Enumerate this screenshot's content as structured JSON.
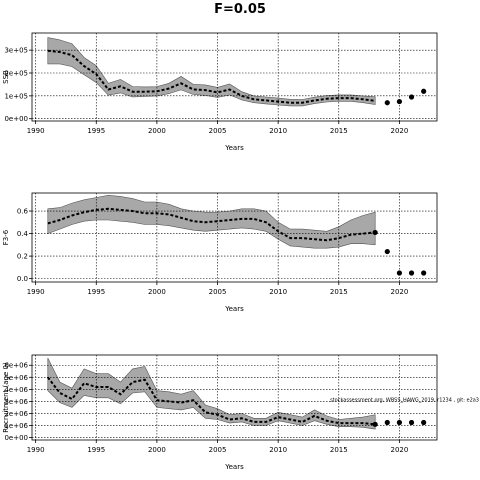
{
  "title": "F=0.05",
  "chart_data": [
    {
      "type": "line",
      "ylabel": "SSB",
      "xlabel": "Years",
      "xlim": [
        1989.7,
        2023.1
      ],
      "ylim": [
        -10000,
        375000
      ],
      "xticks": [
        1990,
        1995,
        2000,
        2005,
        2010,
        2015,
        2020
      ],
      "yticks": [
        0,
        100000,
        200000,
        300000
      ],
      "ytick_labels": [
        "0e+00",
        "1e+05",
        "2e+05",
        "3e+05"
      ],
      "grid": true,
      "x": [
        1991,
        1992,
        1993,
        1994,
        1995,
        1996,
        1997,
        1998,
        1999,
        2000,
        2001,
        2002,
        2003,
        2004,
        2005,
        2006,
        2007,
        2008,
        2009,
        2010,
        2011,
        2012,
        2013,
        2014,
        2015,
        2016,
        2017,
        2018
      ],
      "median": [
        297000,
        292000,
        278000,
        230000,
        195000,
        128000,
        142000,
        118000,
        118000,
        120000,
        132000,
        155000,
        128000,
        125000,
        115000,
        128000,
        100000,
        85000,
        80000,
        75000,
        70000,
        70000,
        80000,
        87000,
        90000,
        90000,
        85000,
        78000
      ],
      "upper": [
        355000,
        345000,
        328000,
        268000,
        232000,
        155000,
        172000,
        141000,
        139000,
        140000,
        155000,
        185000,
        150000,
        148000,
        137000,
        152000,
        118000,
        100000,
        95000,
        90000,
        85000,
        84000,
        94000,
        101000,
        104000,
        104000,
        100000,
        96000
      ],
      "lower": [
        240000,
        240000,
        228000,
        192000,
        158000,
        103000,
        113000,
        95000,
        97000,
        100000,
        110000,
        126000,
        106000,
        102000,
        93000,
        104000,
        82000,
        70000,
        65000,
        60000,
        56000,
        56000,
        66000,
        73000,
        76000,
        76000,
        70000,
        62000
      ],
      "projection": {
        "x": [
          2019,
          2020,
          2021,
          2022
        ],
        "y": [
          70000,
          75000,
          95000,
          120000
        ]
      }
    },
    {
      "type": "line",
      "ylabel": "F3-6",
      "xlabel": "Years",
      "xlim": [
        1989.7,
        2023.1
      ],
      "ylim": [
        -0.03,
        0.76
      ],
      "xticks": [
        1990,
        1995,
        2000,
        2005,
        2010,
        2015,
        2020
      ],
      "yticks": [
        0.0,
        0.2,
        0.4,
        0.6
      ],
      "ytick_labels": [
        "0.0",
        "0.2",
        "0.4",
        "0.6"
      ],
      "grid": true,
      "x": [
        1991,
        1992,
        1993,
        1994,
        1995,
        1996,
        1997,
        1998,
        1999,
        2000,
        2001,
        2002,
        2003,
        2004,
        2005,
        2006,
        2007,
        2008,
        2009,
        2010,
        2011,
        2012,
        2013,
        2014,
        2015,
        2016,
        2017,
        2018
      ],
      "median": [
        0.49,
        0.52,
        0.56,
        0.59,
        0.61,
        0.62,
        0.61,
        0.6,
        0.58,
        0.58,
        0.57,
        0.54,
        0.51,
        0.5,
        0.51,
        0.52,
        0.53,
        0.53,
        0.5,
        0.42,
        0.36,
        0.36,
        0.35,
        0.34,
        0.36,
        0.39,
        0.4,
        0.41
      ],
      "upper": [
        0.62,
        0.63,
        0.67,
        0.7,
        0.72,
        0.74,
        0.73,
        0.71,
        0.68,
        0.68,
        0.66,
        0.62,
        0.6,
        0.59,
        0.59,
        0.6,
        0.62,
        0.62,
        0.6,
        0.5,
        0.44,
        0.44,
        0.43,
        0.42,
        0.46,
        0.52,
        0.56,
        0.59
      ],
      "lower": [
        0.4,
        0.44,
        0.48,
        0.51,
        0.52,
        0.52,
        0.51,
        0.5,
        0.48,
        0.48,
        0.47,
        0.45,
        0.43,
        0.42,
        0.43,
        0.44,
        0.45,
        0.44,
        0.42,
        0.35,
        0.29,
        0.28,
        0.27,
        0.27,
        0.28,
        0.31,
        0.31,
        0.3
      ],
      "projection": {
        "x": [
          2018,
          2019,
          2020,
          2021,
          2022
        ],
        "y": [
          0.41,
          0.24,
          0.05,
          0.05,
          0.05
        ]
      }
    },
    {
      "type": "line",
      "ylabel": "Recruitment (age 0)",
      "xlabel": "Years",
      "xlim": [
        1989.7,
        2023.1
      ],
      "ylim": [
        -200000,
        6850000
      ],
      "xticks": [
        1990,
        1995,
        2000,
        2005,
        2010,
        2015,
        2020
      ],
      "yticks": [
        0,
        1000000,
        2000000,
        3000000,
        4000000,
        5000000,
        6000000
      ],
      "ytick_labels": [
        "0e+00",
        "1e+06",
        "2e+06",
        "3e+06",
        "4e+06",
        "5e+06",
        "6e+06"
      ],
      "grid": true,
      "x": [
        1991,
        1992,
        1993,
        1994,
        1995,
        1996,
        1997,
        1998,
        1999,
        2000,
        2001,
        2002,
        2003,
        2004,
        2005,
        2006,
        2007,
        2008,
        2009,
        2010,
        2011,
        2012,
        2013,
        2014,
        2015,
        2016,
        2017,
        2018
      ],
      "median": [
        5000000,
        3700000,
        3200000,
        4500000,
        4200000,
        4200000,
        3600000,
        4600000,
        4800000,
        3100000,
        3000000,
        2900000,
        3100000,
        2100000,
        1900000,
        1500000,
        1600000,
        1300000,
        1300000,
        1700000,
        1500000,
        1300000,
        1800000,
        1400000,
        1200000,
        1200000,
        1200000,
        1100000
      ],
      "upper": [
        6600000,
        4600000,
        4100000,
        5700000,
        5300000,
        5300000,
        4600000,
        5700000,
        5900000,
        3900000,
        3800000,
        3600000,
        3900000,
        2700000,
        2400000,
        1900000,
        2000000,
        1600000,
        1600000,
        2100000,
        1900000,
        1700000,
        2300000,
        1800000,
        1500000,
        1600000,
        1700000,
        1900000
      ],
      "lower": [
        3900000,
        2900000,
        2500000,
        3500000,
        3300000,
        3300000,
        2800000,
        3700000,
        3800000,
        2500000,
        2400000,
        2300000,
        2500000,
        1600000,
        1500000,
        1200000,
        1300000,
        1000000,
        1000000,
        1400000,
        1200000,
        1000000,
        1400000,
        1100000,
        900000,
        900000,
        850000,
        700000
      ],
      "projection": {
        "x": [
          2018,
          2019,
          2020,
          2021,
          2022
        ],
        "y": [
          1100000,
          1250000,
          1250000,
          1250000,
          1250000
        ]
      },
      "annotation": "stockassessment.org, WBSS_HAWG_2019, r1234 , git: e2a3"
    }
  ]
}
